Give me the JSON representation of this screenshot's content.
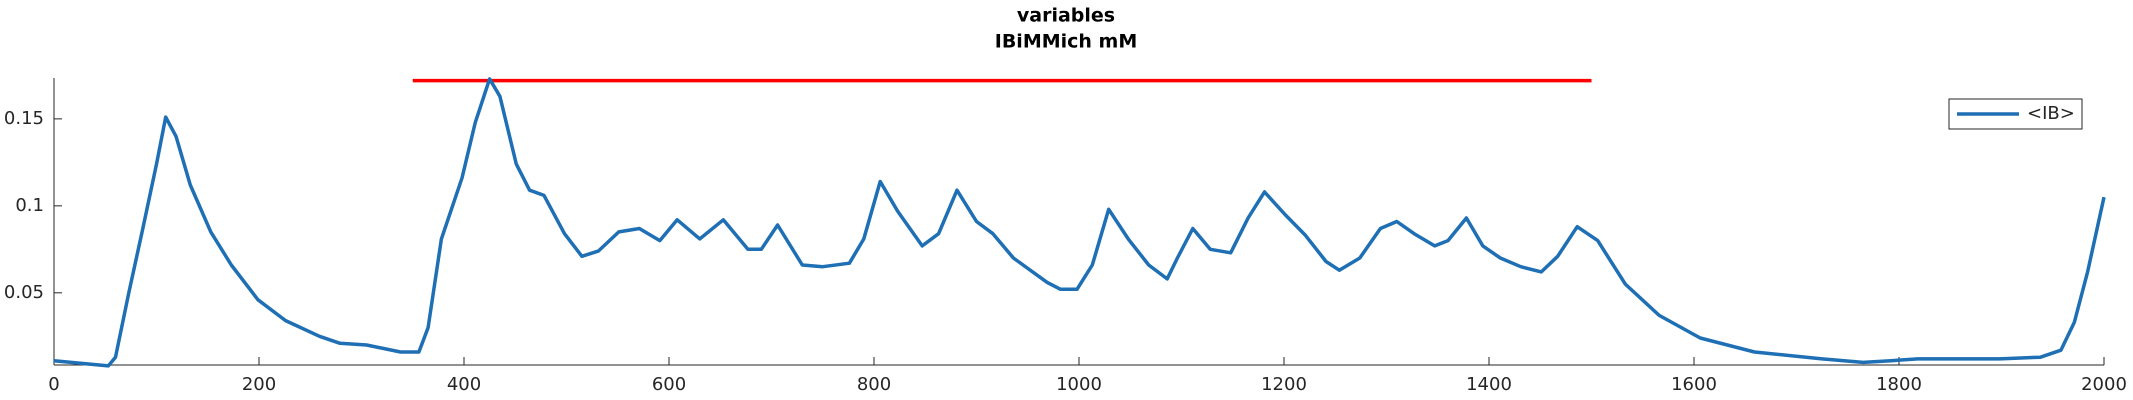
{
  "chart_data": {
    "type": "line",
    "title": "variables",
    "subtitle": "IBiMMich mM",
    "x": [
      0,
      53,
      60,
      73,
      86,
      100,
      109,
      119,
      133,
      153,
      173,
      199,
      226,
      259,
      279,
      305,
      338,
      356,
      365,
      378,
      398,
      411,
      425,
      435,
      451,
      464,
      478,
      498,
      515,
      531,
      551,
      571,
      591,
      608,
      630,
      653,
      677,
      690,
      706,
      730,
      750,
      776,
      790,
      806,
      823,
      847,
      863,
      881,
      900,
      916,
      936,
      969,
      982,
      998,
      1013,
      1029,
      1048,
      1068,
      1086,
      1096,
      1111,
      1128,
      1148,
      1165,
      1181,
      1201,
      1221,
      1241,
      1254,
      1274,
      1294,
      1310,
      1327,
      1347,
      1360,
      1378,
      1394,
      1411,
      1431,
      1451,
      1467,
      1486,
      1506,
      1533,
      1566,
      1606,
      1659,
      1725,
      1765,
      1792,
      1818,
      1845,
      1898,
      1938,
      1958,
      1971,
      1984,
      2000
    ],
    "series": [
      {
        "name": "<IB>",
        "color": "#1f6fb5",
        "values": [
          0.011,
          0.008,
          0.013,
          0.05,
          0.085,
          0.124,
          0.151,
          0.14,
          0.112,
          0.085,
          0.066,
          0.046,
          0.034,
          0.025,
          0.021,
          0.02,
          0.016,
          0.016,
          0.03,
          0.081,
          0.116,
          0.148,
          0.173,
          0.163,
          0.124,
          0.109,
          0.106,
          0.084,
          0.071,
          0.074,
          0.085,
          0.087,
          0.08,
          0.092,
          0.081,
          0.092,
          0.075,
          0.075,
          0.089,
          0.066,
          0.065,
          0.067,
          0.081,
          0.114,
          0.097,
          0.077,
          0.084,
          0.109,
          0.091,
          0.084,
          0.07,
          0.056,
          0.052,
          0.052,
          0.066,
          0.098,
          0.081,
          0.066,
          0.058,
          0.07,
          0.087,
          0.075,
          0.073,
          0.093,
          0.108,
          0.095,
          0.083,
          0.068,
          0.063,
          0.07,
          0.087,
          0.091,
          0.084,
          0.077,
          0.08,
          0.093,
          0.077,
          0.07,
          0.065,
          0.062,
          0.071,
          0.088,
          0.08,
          0.055,
          0.037,
          0.024,
          0.016,
          0.012,
          0.01,
          0.011,
          0.012,
          0.012,
          0.012,
          0.013,
          0.017,
          0.033,
          0.062,
          0.105
        ]
      }
    ],
    "hline": {
      "y": 0.172,
      "xmin": 350,
      "xmax": 1500,
      "color": "#ff0000"
    },
    "xlim": [
      0,
      2000
    ],
    "xticks": [
      0,
      200,
      400,
      600,
      800,
      1000,
      1200,
      1400,
      1600,
      1800,
      2000
    ],
    "ylim": [
      0.0085,
      0.1735
    ],
    "yticks": [
      0.05,
      0.1,
      0.15
    ],
    "legend": "top-right"
  }
}
